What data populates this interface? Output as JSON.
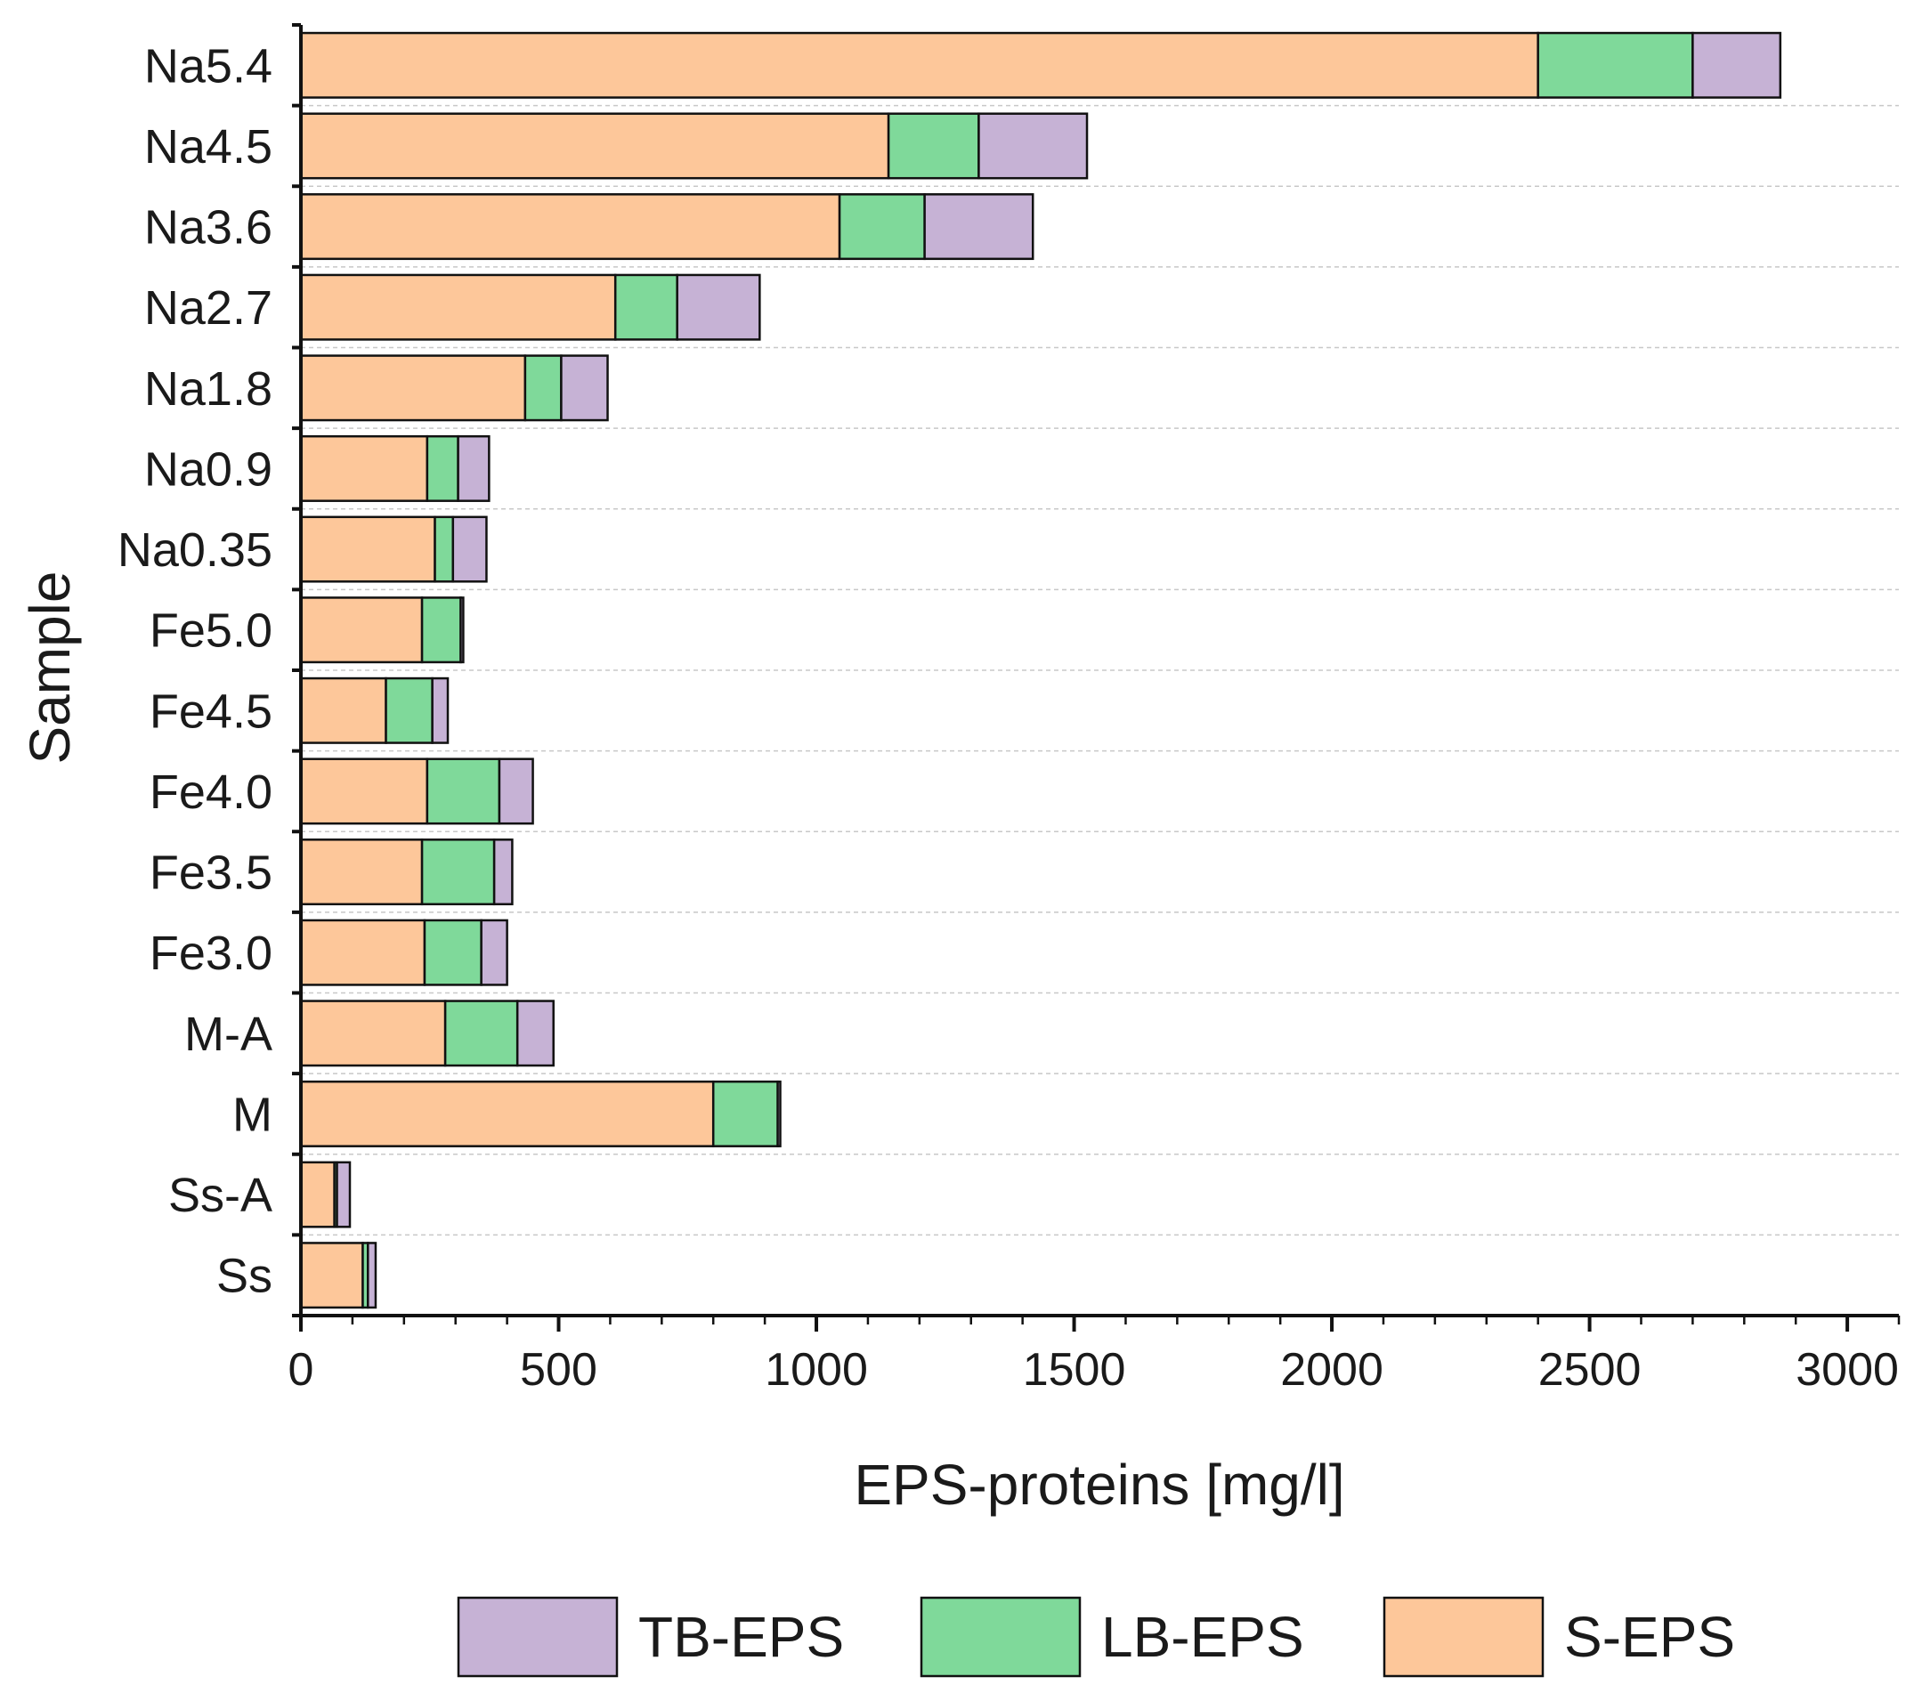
{
  "chart_data": {
    "type": "bar",
    "orientation": "horizontal",
    "stacked": true,
    "title": "",
    "xlabel": "EPS-proteins [mg/l]",
    "ylabel": "Sample",
    "xlim": [
      0,
      3100
    ],
    "xticks": [
      0,
      500,
      1000,
      1500,
      2000,
      2500,
      3000
    ],
    "xtick_labels": [
      "0",
      "500",
      "1000",
      "1500",
      "2000",
      "2500",
      "3000"
    ],
    "categories": [
      "Na5.4",
      "Na4.5",
      "Na3.6",
      "Na2.7",
      "Na1.8",
      "Na0.9",
      "Na0.35",
      "Fe5.0",
      "Fe4.5",
      "Fe4.0",
      "Fe3.5",
      "Fe3.0",
      "M-A",
      "M",
      "Ss-A",
      "Ss"
    ],
    "series": [
      {
        "name": "S-EPS",
        "color": "#FDC79A",
        "values": [
          2400,
          1140,
          1045,
          610,
          435,
          245,
          260,
          235,
          165,
          245,
          235,
          240,
          280,
          800,
          65,
          120
        ]
      },
      {
        "name": "LB-EPS",
        "color": "#7FD99A",
        "values": [
          300,
          175,
          165,
          120,
          70,
          60,
          35,
          75,
          90,
          140,
          140,
          110,
          140,
          125,
          5,
          10
        ]
      },
      {
        "name": "TB-EPS",
        "color": "#C6B2D5",
        "values": [
          170,
          210,
          210,
          160,
          90,
          60,
          65,
          5,
          30,
          65,
          35,
          50,
          70,
          5,
          25,
          15
        ]
      }
    ],
    "legend": {
      "position": "bottom",
      "order": [
        "TB-EPS",
        "LB-EPS",
        "S-EPS"
      ]
    },
    "grid": {
      "horizontal": true,
      "vertical": false,
      "style": "dashed"
    }
  }
}
